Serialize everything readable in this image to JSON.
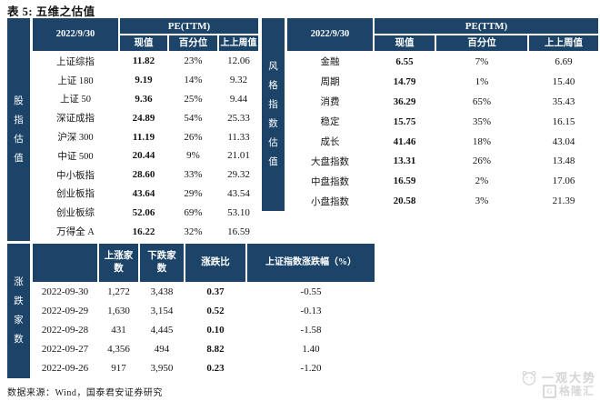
{
  "title": "表 5: 五维之估值",
  "colors": {
    "header_bg": "#1c4468",
    "text": "#141414",
    "watermark": "#d6d6d6"
  },
  "index_table": {
    "side_label": "股指估值",
    "date": "2022/9/30",
    "group_header": "PE(TTM)",
    "headers": {
      "current": "现值",
      "percentile": "百分位",
      "prev": "上上周值"
    },
    "rows": [
      {
        "label": "上证综指",
        "current": "11.82",
        "percentile": "23%",
        "prev": "12.06"
      },
      {
        "label": "上证 180",
        "current": "9.19",
        "percentile": "14%",
        "prev": "9.32"
      },
      {
        "label": "上证 50",
        "current": "9.36",
        "percentile": "25%",
        "prev": "9.44"
      },
      {
        "label": "深证成指",
        "current": "24.89",
        "percentile": "54%",
        "prev": "25.33"
      },
      {
        "label": "沪深 300",
        "current": "11.19",
        "percentile": "26%",
        "prev": "11.33"
      },
      {
        "label": "中证 500",
        "current": "20.44",
        "percentile": "9%",
        "prev": "21.01"
      },
      {
        "label": "中小板指",
        "current": "28.60",
        "percentile": "33%",
        "prev": "29.32"
      },
      {
        "label": "创业板指",
        "current": "43.64",
        "percentile": "29%",
        "prev": "43.54"
      },
      {
        "label": "创业板综",
        "current": "52.06",
        "percentile": "69%",
        "prev": "53.10"
      },
      {
        "label": "万得全 A",
        "current": "16.22",
        "percentile": "32%",
        "prev": "16.59"
      }
    ]
  },
  "style_table": {
    "side_label": "风格指数估值",
    "date": "2022/9/30",
    "group_header": "PE(TTM)",
    "headers": {
      "current": "现值",
      "percentile": "百分位",
      "prev": "上上周值"
    },
    "rows": [
      {
        "label": "金融",
        "current": "6.55",
        "percentile": "7%",
        "prev": "6.69"
      },
      {
        "label": "周期",
        "current": "14.79",
        "percentile": "1%",
        "prev": "15.40"
      },
      {
        "label": "消费",
        "current": "36.29",
        "percentile": "65%",
        "prev": "35.43"
      },
      {
        "label": "稳定",
        "current": "15.75",
        "percentile": "35%",
        "prev": "16.15"
      },
      {
        "label": "成长",
        "current": "41.46",
        "percentile": "18%",
        "prev": "43.04"
      },
      {
        "label": "大盘指数",
        "current": "13.31",
        "percentile": "26%",
        "prev": "13.48"
      },
      {
        "label": "中盘指数",
        "current": "16.59",
        "percentile": "2%",
        "prev": "17.06"
      },
      {
        "label": "小盘指数",
        "current": "20.58",
        "percentile": "3%",
        "prev": "21.39"
      }
    ]
  },
  "breadth_table": {
    "side_label": "涨跌家数",
    "headers": {
      "date": "",
      "up": "上涨家数",
      "down": "下跌家数",
      "ratio": "涨跌比",
      "change": "上证指数涨跌幅（%）"
    },
    "rows": [
      {
        "date": "2022-09-30",
        "up": "1,272",
        "down": "3,438",
        "ratio": "0.37",
        "change": "-0.55"
      },
      {
        "date": "2022-09-29",
        "up": "1,630",
        "down": "3,154",
        "ratio": "0.52",
        "change": "-0.13"
      },
      {
        "date": "2022-09-28",
        "up": "431",
        "down": "4,445",
        "ratio": "0.10",
        "change": "-1.58"
      },
      {
        "date": "2022-09-27",
        "up": "4,356",
        "down": "494",
        "ratio": "8.82",
        "change": "1.40"
      },
      {
        "date": "2022-09-26",
        "up": "917",
        "down": "3,950",
        "ratio": "0.23",
        "change": "-1.20"
      }
    ]
  },
  "footer": {
    "source": "数据来源：Wind，国泰君安证券研究"
  },
  "watermark": {
    "series": "一观大势",
    "brand": "格隆汇"
  }
}
